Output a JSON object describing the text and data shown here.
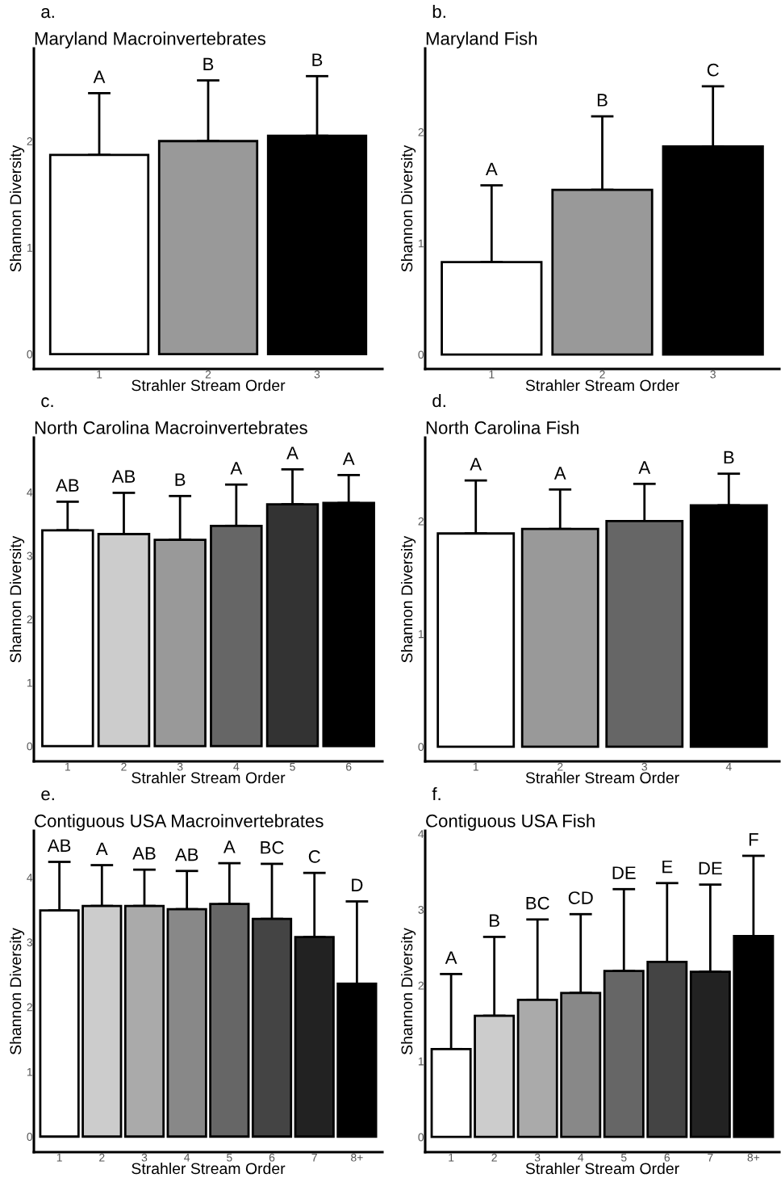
{
  "chart_data": [
    {
      "type": "bar",
      "title": "Maryland Macroinvertebrates",
      "xlabel": "Strahler Stream Order",
      "ylabel": "Shannon Diversity",
      "categories": [
        "1",
        "2",
        "3"
      ],
      "values": [
        1.87,
        2.0,
        2.05
      ],
      "colors": [
        "#ffffff",
        "#999999",
        "#000000"
      ],
      "errors": [
        [
          1.87,
          2.45
        ],
        [
          2.0,
          2.57
        ],
        [
          2.05,
          2.61
        ]
      ],
      "ylim": [
        -0.14,
        2.87
      ],
      "yticks": [
        0,
        1,
        2
      ],
      "grid": false,
      "annotations": [
        "a.",
        {
          "text": "A",
          "x": "1",
          "y": 2.45
        },
        {
          "text": "B",
          "x": "2",
          "y": 2.57
        },
        {
          "text": "B",
          "x": "3",
          "y": 2.61
        }
      ]
    },
    {
      "type": "bar",
      "title": "Maryland Fish",
      "xlabel": "Strahler Stream Order",
      "ylabel": "Shannon Diversity",
      "categories": [
        "1",
        "2",
        "3"
      ],
      "values": [
        0.83,
        1.48,
        1.87
      ],
      "colors": [
        "#ffffff",
        "#999999",
        "#000000"
      ],
      "errors": [
        [
          0.83,
          1.52
        ],
        [
          1.48,
          2.14
        ],
        [
          1.87,
          2.41
        ]
      ],
      "ylim": [
        -0.13,
        2.75
      ],
      "yticks": [
        0,
        1,
        2
      ],
      "grid": false,
      "annotations": [
        "b.",
        {
          "text": "A",
          "x": "1",
          "y": 1.52
        },
        {
          "text": "B",
          "x": "2",
          "y": 2.14
        },
        {
          "text": "C",
          "x": "3",
          "y": 2.41
        }
      ]
    },
    {
      "type": "bar",
      "title": "North Carolina Macroinvertebrates",
      "xlabel": "Strahler Stream Order",
      "ylabel": "Shannon Diversity",
      "categories": [
        "1",
        "2",
        "3",
        "4",
        "5",
        "6"
      ],
      "values": [
        3.4,
        3.34,
        3.25,
        3.47,
        3.81,
        3.83
      ],
      "colors": [
        "#ffffff",
        "#cccccc",
        "#999999",
        "#666666",
        "#333333",
        "#000000"
      ],
      "errors": [
        [
          3.4,
          3.85
        ],
        [
          3.34,
          3.99
        ],
        [
          3.25,
          3.94
        ],
        [
          3.47,
          4.12
        ],
        [
          3.81,
          4.36
        ],
        [
          3.83,
          4.27
        ]
      ],
      "ylim": [
        -0.24,
        4.86
      ],
      "yticks": [
        0,
        1,
        2,
        3,
        4
      ],
      "grid": false,
      "annotations": [
        "c.",
        {
          "text": "AB",
          "x": "1",
          "y": 3.85
        },
        {
          "text": "AB",
          "x": "2",
          "y": 3.99
        },
        {
          "text": "B",
          "x": "3",
          "y": 3.94
        },
        {
          "text": "A",
          "x": "4",
          "y": 4.12
        },
        {
          "text": "A",
          "x": "5",
          "y": 4.36
        },
        {
          "text": "A",
          "x": "6",
          "y": 4.27
        }
      ]
    },
    {
      "type": "bar",
      "title": "North Carolina Fish",
      "xlabel": "Strahler Stream Order",
      "ylabel": "Shannon Diversity",
      "categories": [
        "1",
        "2",
        "3",
        "4"
      ],
      "values": [
        1.89,
        1.93,
        2.0,
        2.14
      ],
      "colors": [
        "#ffffff",
        "#999999",
        "#666666",
        "#000000"
      ],
      "errors": [
        [
          1.89,
          2.36
        ],
        [
          1.93,
          2.28
        ],
        [
          2.0,
          2.33
        ],
        [
          2.14,
          2.42
        ]
      ],
      "ylim": [
        -0.13,
        2.74
      ],
      "yticks": [
        0,
        1,
        2
      ],
      "grid": false,
      "annotations": [
        "d.",
        {
          "text": "A",
          "x": "1",
          "y": 2.36
        },
        {
          "text": "A",
          "x": "2",
          "y": 2.28
        },
        {
          "text": "A",
          "x": "3",
          "y": 2.33
        },
        {
          "text": "B",
          "x": "4",
          "y": 2.42
        }
      ]
    },
    {
      "type": "bar",
      "title": "Contiguous USA Macroinvertebrates",
      "xlabel": "Strahler Stream Order",
      "ylabel": "Shannon Diversity",
      "categories": [
        "1",
        "2",
        "3",
        "4",
        "5",
        "6",
        "7",
        "8+"
      ],
      "values": [
        3.49,
        3.56,
        3.56,
        3.51,
        3.59,
        3.36,
        3.08,
        2.36
      ],
      "colors": [
        "#ffffff",
        "#cccccc",
        "#aaaaaa",
        "#888888",
        "#666666",
        "#444444",
        "#222222",
        "#000000"
      ],
      "errors": [
        [
          3.49,
          4.24
        ],
        [
          3.56,
          4.19
        ],
        [
          3.56,
          4.12
        ],
        [
          3.51,
          4.1
        ],
        [
          3.59,
          4.22
        ],
        [
          3.36,
          4.21
        ],
        [
          3.08,
          4.07
        ],
        [
          2.36,
          3.63
        ]
      ],
      "ylim": [
        -0.24,
        4.72
      ],
      "yticks": [
        0,
        1,
        2,
        3,
        4
      ],
      "grid": false,
      "annotations": [
        "e.",
        {
          "text": "AB",
          "x": "1",
          "y": 4.24
        },
        {
          "text": "A",
          "x": "2",
          "y": 4.19
        },
        {
          "text": "AB",
          "x": "3",
          "y": 4.12
        },
        {
          "text": "AB",
          "x": "4",
          "y": 4.1
        },
        {
          "text": "A",
          "x": "5",
          "y": 4.22
        },
        {
          "text": "BC",
          "x": "6",
          "y": 4.21
        },
        {
          "text": "C",
          "x": "7",
          "y": 4.07
        },
        {
          "text": "D",
          "x": "8+",
          "y": 3.63
        }
      ]
    },
    {
      "type": "bar",
      "title": "Contiguous USA Fish",
      "xlabel": "Strahler Stream Order",
      "ylabel": "Shannon Diversity",
      "categories": [
        "1",
        "2",
        "3",
        "4",
        "5",
        "6",
        "7",
        "8+"
      ],
      "values": [
        1.16,
        1.6,
        1.81,
        1.9,
        2.19,
        2.31,
        2.18,
        2.65
      ],
      "colors": [
        "#ffffff",
        "#cccccc",
        "#aaaaaa",
        "#888888",
        "#666666",
        "#444444",
        "#222222",
        "#000000"
      ],
      "errors": [
        [
          1.16,
          2.15
        ],
        [
          1.6,
          2.64
        ],
        [
          1.81,
          2.87
        ],
        [
          1.9,
          2.94
        ],
        [
          2.19,
          3.27
        ],
        [
          2.31,
          3.35
        ],
        [
          2.18,
          3.33
        ],
        [
          2.65,
          3.71
        ]
      ],
      "ylim": [
        -0.2,
        4.04
      ],
      "yticks": [
        0,
        1,
        2,
        3,
        4
      ],
      "grid": false,
      "annotations": [
        "f.",
        {
          "text": "A",
          "x": "1",
          "y": 2.15
        },
        {
          "text": "B",
          "x": "2",
          "y": 2.64
        },
        {
          "text": "BC",
          "x": "3",
          "y": 2.87
        },
        {
          "text": "CD",
          "x": "4",
          "y": 2.94
        },
        {
          "text": "DE",
          "x": "5",
          "y": 3.27
        },
        {
          "text": "E",
          "x": "6",
          "y": 3.35
        },
        {
          "text": "DE",
          "x": "7",
          "y": 3.33
        },
        {
          "text": "F",
          "x": "8+",
          "y": 3.71
        }
      ]
    }
  ]
}
